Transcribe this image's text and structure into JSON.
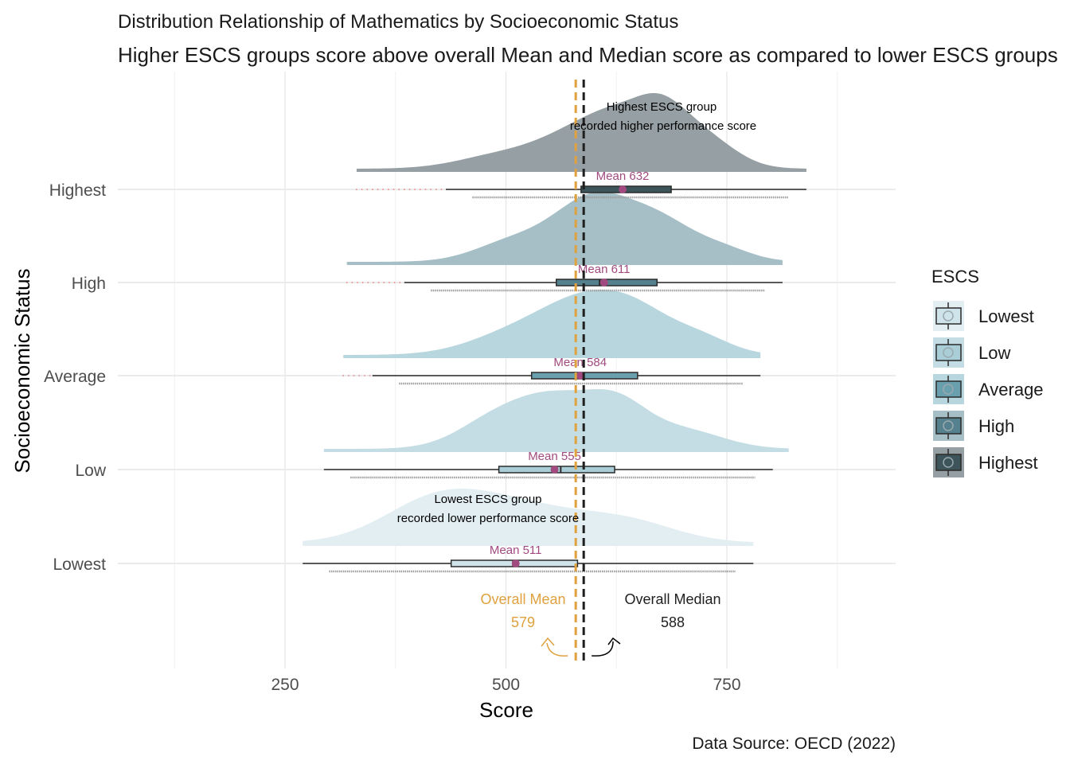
{
  "chart_data": {
    "type": "raincloud",
    "title": "Distribution Relationship of Mathematics by Socioeconomic Status",
    "subtitle": "Higher ESCS groups score above overall Mean and Median score as compared to lower ESCS groups",
    "xlabel": "Score",
    "ylabel": "Socioeconomic Status",
    "xlim": [
      125,
      900
    ],
    "x_ticks": [
      250,
      500,
      750
    ],
    "grid": true,
    "legend_title": "ESCS",
    "legend_position": "right",
    "caption": "Data Source: OECD (2022)",
    "categories": [
      "Lowest",
      "Low",
      "Average",
      "High",
      "Highest"
    ],
    "groups": [
      {
        "name": "Lowest",
        "mean": 511,
        "mean_label": "Mean 511",
        "min": 270,
        "q1": 438,
        "median": 508,
        "q3": 581,
        "max": 780,
        "range": [
          270,
          780
        ],
        "color": "#e2eef2",
        "box_fill": "#cfe3ea"
      },
      {
        "name": "Low",
        "mean": 555,
        "mean_label": "Mean 555",
        "min": 294,
        "q1": 492,
        "median": 562,
        "q3": 623,
        "max": 802,
        "range": [
          294,
          820
        ],
        "color": "#c4dde4",
        "box_fill": "#a9ced8"
      },
      {
        "name": "Average",
        "mean": 584,
        "mean_label": "Mean 584",
        "min": 349,
        "q1": 529,
        "median": 586,
        "q3": 649,
        "max": 788,
        "range": [
          316,
          788
        ],
        "color": "#b8d6de",
        "box_fill": "#6a9fae"
      },
      {
        "name": "High",
        "mean": 611,
        "mean_label": "Mean 611",
        "min": 385,
        "q1": 557,
        "median": 606,
        "q3": 671,
        "max": 813,
        "range": [
          320,
          813
        ],
        "color": "#a6bfc6",
        "box_fill": "#55808d"
      },
      {
        "name": "Highest",
        "mean": 632,
        "mean_label": "Mean 632",
        "min": 432,
        "q1": 585,
        "median": 630,
        "q3": 687,
        "max": 840,
        "range": [
          331,
          840
        ],
        "color": "#969fa3",
        "box_fill": "#3e545b"
      }
    ],
    "overall_mean": {
      "value": 579,
      "label": "Overall Mean",
      "value_label": "579",
      "color": "#e0a13f"
    },
    "overall_median": {
      "value": 588,
      "label": "Overall Median",
      "value_label": "588",
      "color": "#1f1f1f"
    },
    "annotations": {
      "highest_line1": "Highest ESCS group",
      "highest_line2": "recorded higher performance score",
      "lowest_line1": "Lowest ESCS group",
      "lowest_line2": "recorded lower performance score"
    }
  }
}
